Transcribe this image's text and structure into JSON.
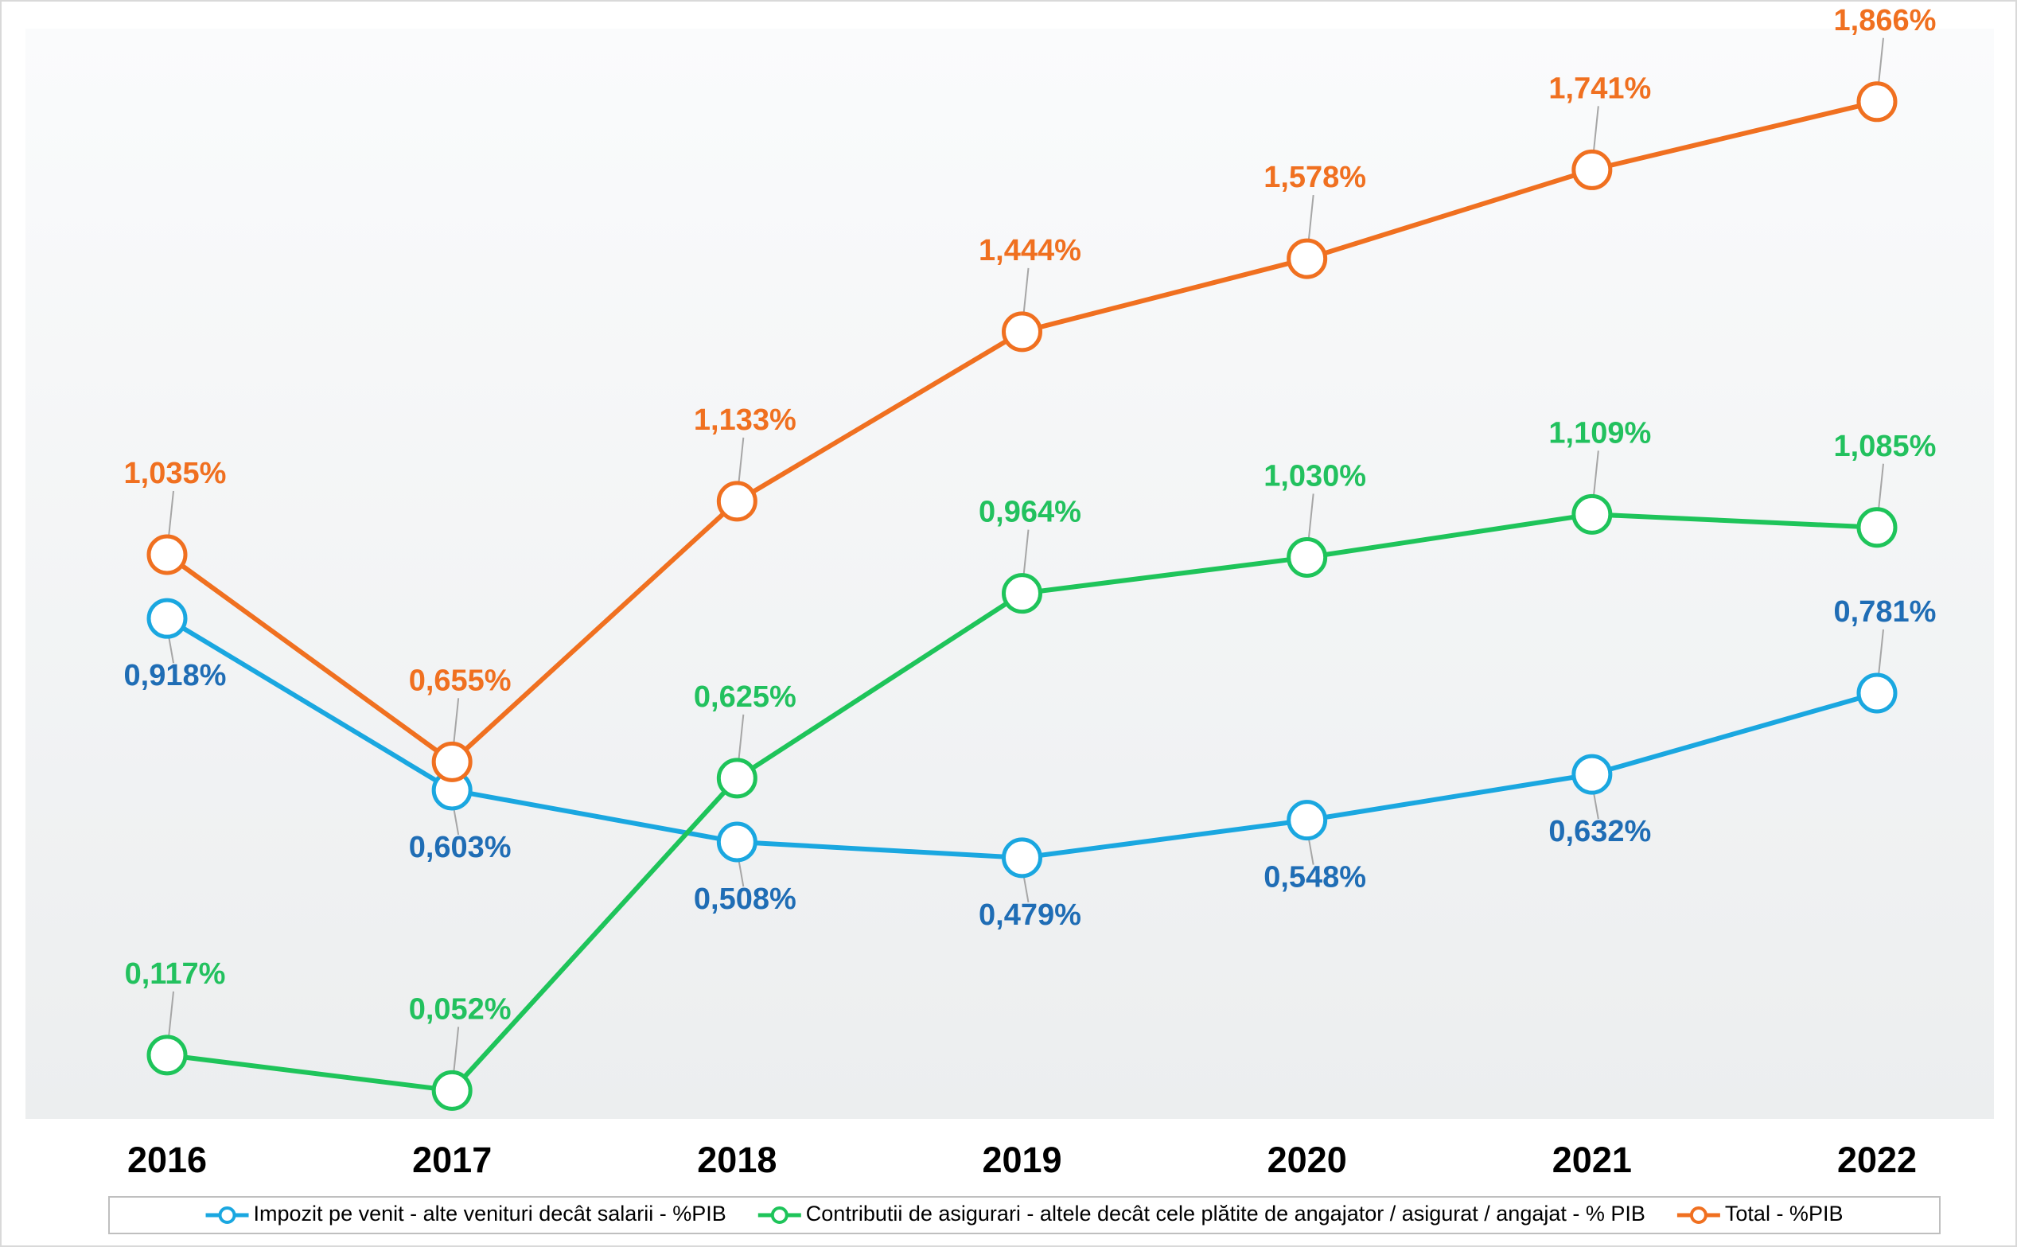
{
  "chart_data": {
    "type": "line",
    "categories": [
      "2016",
      "2017",
      "2018",
      "2019",
      "2020",
      "2021",
      "2022"
    ],
    "ylim": [
      0,
      2
    ],
    "series": [
      {
        "name": "Impozit pe venit - alte venituri decât salarii - %PIB",
        "color": "#1aa7e0",
        "label_color": "#1f6db5",
        "values": [
          0.918,
          0.603,
          0.508,
          0.479,
          0.548,
          0.632,
          0.781
        ],
        "value_labels": [
          "0,918%",
          "0,603%",
          "0,508%",
          "0,479%",
          "0,548%",
          "0,632%",
          "0,781%"
        ]
      },
      {
        "name": "Contributii de asigurari - altele decât cele plătite de angajator / asigurat / angajat - % PIB",
        "color": "#1ec45a",
        "label_color": "#22c15e",
        "values": [
          0.117,
          0.052,
          0.625,
          0.964,
          1.03,
          1.109,
          1.085
        ],
        "value_labels": [
          "0,117%",
          "0,052%",
          "0,625%",
          "0,964%",
          "1,030%",
          "1,109%",
          "1,085%"
        ]
      },
      {
        "name": "Total - %PIB",
        "color": "#f07020",
        "label_color": "#f07020",
        "values": [
          1.035,
          0.655,
          1.133,
          1.444,
          1.578,
          1.741,
          1.866
        ],
        "value_labels": [
          "1,035%",
          "0,655%",
          "1,133%",
          "1,444%",
          "1,578%",
          "1,741%",
          "1,866%"
        ]
      }
    ]
  }
}
